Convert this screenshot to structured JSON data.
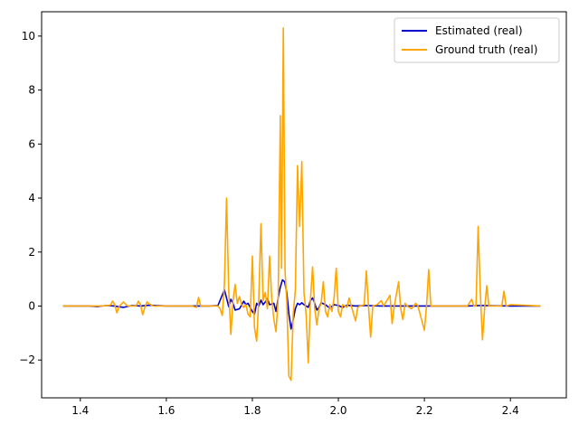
{
  "chart_data": {
    "type": "line",
    "title": "",
    "xlabel": "",
    "ylabel": "",
    "xlim": [
      1.31,
      2.53
    ],
    "ylim": [
      -3.4,
      10.9
    ],
    "xticks": [
      1.4,
      1.6,
      1.8,
      2.0,
      2.2,
      2.4
    ],
    "xtick_labels": [
      "1.4",
      "1.6",
      "1.8",
      "2.0",
      "2.2",
      "2.4"
    ],
    "yticks": [
      -2,
      0,
      2,
      4,
      6,
      8,
      10
    ],
    "ytick_labels": [
      "−2",
      "0",
      "2",
      "4",
      "6",
      "8",
      "10"
    ],
    "grid": false,
    "legend_position": "upper right",
    "series": [
      {
        "name": "Estimated (real)",
        "color": "#0000cc",
        "points": [
          [
            1.36,
            0.0
          ],
          [
            1.42,
            0.0
          ],
          [
            1.44,
            -0.02
          ],
          [
            1.46,
            0.02
          ],
          [
            1.48,
            0.0
          ],
          [
            1.5,
            -0.05
          ],
          [
            1.52,
            0.02
          ],
          [
            1.54,
            0.0
          ],
          [
            1.56,
            0.03
          ],
          [
            1.6,
            0.0
          ],
          [
            1.7,
            0.0
          ],
          [
            1.72,
            0.02
          ],
          [
            1.735,
            0.6
          ],
          [
            1.74,
            0.3
          ],
          [
            1.745,
            -0.02
          ],
          [
            1.75,
            0.25
          ],
          [
            1.755,
            0.1
          ],
          [
            1.76,
            -0.15
          ],
          [
            1.77,
            -0.1
          ],
          [
            1.78,
            0.18
          ],
          [
            1.785,
            0.05
          ],
          [
            1.79,
            0.1
          ],
          [
            1.8,
            -0.2
          ],
          [
            1.805,
            -0.3
          ],
          [
            1.81,
            0.1
          ],
          [
            1.815,
            0.0
          ],
          [
            1.82,
            0.22
          ],
          [
            1.825,
            0.05
          ],
          [
            1.83,
            0.15
          ],
          [
            1.835,
            0.28
          ],
          [
            1.84,
            0.05
          ],
          [
            1.85,
            0.1
          ],
          [
            1.855,
            -0.2
          ],
          [
            1.86,
            0.3
          ],
          [
            1.865,
            0.7
          ],
          [
            1.87,
            0.97
          ],
          [
            1.875,
            0.9
          ],
          [
            1.88,
            0.5
          ],
          [
            1.885,
            -0.3
          ],
          [
            1.89,
            -0.85
          ],
          [
            1.895,
            -0.5
          ],
          [
            1.9,
            -0.1
          ],
          [
            1.905,
            0.1
          ],
          [
            1.91,
            0.05
          ],
          [
            1.915,
            0.12
          ],
          [
            1.92,
            0.05
          ],
          [
            1.93,
            -0.05
          ],
          [
            1.935,
            0.2
          ],
          [
            1.94,
            0.3
          ],
          [
            1.945,
            0.1
          ],
          [
            1.95,
            -0.15
          ],
          [
            1.955,
            -0.05
          ],
          [
            1.96,
            0.12
          ],
          [
            1.97,
            0.05
          ],
          [
            1.98,
            -0.08
          ],
          [
            1.99,
            0.05
          ],
          [
            2.0,
            0.02
          ],
          [
            2.01,
            -0.05
          ],
          [
            2.02,
            0.03
          ],
          [
            2.04,
            0.0
          ],
          [
            2.06,
            0.02
          ],
          [
            2.1,
            0.0
          ],
          [
            2.2,
            0.0
          ],
          [
            2.3,
            0.0
          ],
          [
            2.33,
            0.02
          ],
          [
            2.4,
            0.0
          ],
          [
            2.47,
            0.0
          ]
        ]
      },
      {
        "name": "Ground truth (real)",
        "color": "#ffa500",
        "points": [
          [
            1.36,
            0.0
          ],
          [
            1.45,
            0.0
          ],
          [
            1.47,
            0.03
          ],
          [
            1.475,
            0.18
          ],
          [
            1.48,
            0.05
          ],
          [
            1.485,
            -0.25
          ],
          [
            1.49,
            -0.02
          ],
          [
            1.5,
            0.15
          ],
          [
            1.51,
            0.0
          ],
          [
            1.53,
            0.0
          ],
          [
            1.535,
            0.18
          ],
          [
            1.54,
            0.05
          ],
          [
            1.545,
            -0.32
          ],
          [
            1.55,
            -0.05
          ],
          [
            1.555,
            0.15
          ],
          [
            1.56,
            0.08
          ],
          [
            1.57,
            0.0
          ],
          [
            1.66,
            0.0
          ],
          [
            1.67,
            -0.05
          ],
          [
            1.675,
            0.32
          ],
          [
            1.68,
            0.0
          ],
          [
            1.72,
            0.0
          ],
          [
            1.725,
            -0.1
          ],
          [
            1.73,
            -0.35
          ],
          [
            1.735,
            0.8
          ],
          [
            1.74,
            4.0
          ],
          [
            1.745,
            0.6
          ],
          [
            1.75,
            -1.05
          ],
          [
            1.755,
            0.2
          ],
          [
            1.76,
            0.8
          ],
          [
            1.765,
            0.1
          ],
          [
            1.77,
            0.35
          ],
          [
            1.775,
            0.05
          ],
          [
            1.78,
            -0.05
          ],
          [
            1.785,
            0.05
          ],
          [
            1.79,
            -0.3
          ],
          [
            1.795,
            -0.4
          ],
          [
            1.8,
            1.85
          ],
          [
            1.805,
            -0.8
          ],
          [
            1.81,
            -1.3
          ],
          [
            1.815,
            0.3
          ],
          [
            1.82,
            3.05
          ],
          [
            1.825,
            0.2
          ],
          [
            1.83,
            0.5
          ],
          [
            1.835,
            -0.1
          ],
          [
            1.84,
            1.85
          ],
          [
            1.845,
            0.3
          ],
          [
            1.85,
            -0.5
          ],
          [
            1.855,
            -0.95
          ],
          [
            1.86,
            0.3
          ],
          [
            1.865,
            7.05
          ],
          [
            1.868,
            1.4
          ],
          [
            1.872,
            10.3
          ],
          [
            1.876,
            1.3
          ],
          [
            1.88,
            0.2
          ],
          [
            1.885,
            -2.6
          ],
          [
            1.89,
            -2.75
          ],
          [
            1.895,
            -0.3
          ],
          [
            1.9,
            0.6
          ],
          [
            1.905,
            5.2
          ],
          [
            1.91,
            2.95
          ],
          [
            1.915,
            5.35
          ],
          [
            1.92,
            0.5
          ],
          [
            1.925,
            -0.3
          ],
          [
            1.93,
            -2.1
          ],
          [
            1.935,
            0.2
          ],
          [
            1.94,
            1.45
          ],
          [
            1.945,
            -0.1
          ],
          [
            1.95,
            -0.7
          ],
          [
            1.955,
            -0.1
          ],
          [
            1.96,
            0.1
          ],
          [
            1.965,
            0.9
          ],
          [
            1.97,
            -0.2
          ],
          [
            1.975,
            -0.4
          ],
          [
            1.98,
            0.05
          ],
          [
            1.985,
            -0.2
          ],
          [
            1.99,
            0.3
          ],
          [
            1.995,
            1.4
          ],
          [
            2.0,
            -0.2
          ],
          [
            2.005,
            -0.4
          ],
          [
            2.01,
            0.05
          ],
          [
            2.02,
            -0.05
          ],
          [
            2.025,
            0.3
          ],
          [
            2.03,
            0.0
          ],
          [
            2.04,
            -0.55
          ],
          [
            2.045,
            -0.05
          ],
          [
            2.05,
            0.0
          ],
          [
            2.06,
            0.05
          ],
          [
            2.065,
            1.3
          ],
          [
            2.07,
            0.0
          ],
          [
            2.075,
            -1.15
          ],
          [
            2.08,
            0.0
          ],
          [
            2.09,
            0.05
          ],
          [
            2.1,
            0.2
          ],
          [
            2.105,
            0.0
          ],
          [
            2.12,
            0.4
          ],
          [
            2.125,
            -0.65
          ],
          [
            2.13,
            0.0
          ],
          [
            2.14,
            0.9
          ],
          [
            2.145,
            -0.1
          ],
          [
            2.15,
            -0.5
          ],
          [
            2.155,
            0.1
          ],
          [
            2.16,
            0.0
          ],
          [
            2.17,
            -0.1
          ],
          [
            2.18,
            0.1
          ],
          [
            2.185,
            0.0
          ],
          [
            2.2,
            -0.9
          ],
          [
            2.205,
            0.0
          ],
          [
            2.21,
            1.35
          ],
          [
            2.215,
            0.0
          ],
          [
            2.22,
            0.0
          ],
          [
            2.3,
            0.0
          ],
          [
            2.31,
            0.25
          ],
          [
            2.315,
            0.0
          ],
          [
            2.32,
            0.0
          ],
          [
            2.325,
            2.95
          ],
          [
            2.33,
            0.5
          ],
          [
            2.335,
            -1.25
          ],
          [
            2.34,
            -0.1
          ],
          [
            2.345,
            0.75
          ],
          [
            2.35,
            0.0
          ],
          [
            2.38,
            0.0
          ],
          [
            2.385,
            0.55
          ],
          [
            2.39,
            0.0
          ],
          [
            2.4,
            0.05
          ],
          [
            2.47,
            0.0
          ]
        ]
      }
    ]
  }
}
